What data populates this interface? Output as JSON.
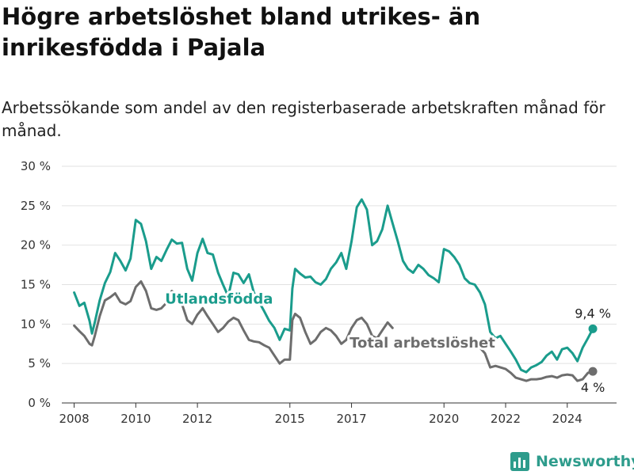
{
  "header": {
    "title": "Högre arbetslöshet bland utrikes- än inrikesfödda i Pajala",
    "subtitle": "Arbetssökande som andel av den registerbaserade arbetskraften månad för månad."
  },
  "brand": {
    "name": "Newsworthy"
  },
  "chart_data": {
    "type": "line",
    "title": "Högre arbetslöshet bland utrikes- än inrikesfödda i Pajala",
    "subtitle": "Arbetssökande som andel av den registerbaserade arbetskraften månad för månad.",
    "xlabel": "",
    "ylabel": "",
    "xlim": [
      2008.0,
      2025.0
    ],
    "ylim": [
      0,
      30
    ],
    "y_ticks": [
      0,
      5,
      10,
      15,
      20,
      25,
      30
    ],
    "y_tick_labels": [
      "0 %",
      "5 %",
      "10 %",
      "15 %",
      "20 %",
      "25 %",
      "30 %"
    ],
    "x_ticks": [
      2008,
      2010,
      2012,
      2015,
      2017,
      2020,
      2022,
      2024
    ],
    "x_tick_labels": [
      "2008",
      "2010",
      "2012",
      "2015",
      "2017",
      "2020",
      "2022",
      "2024"
    ],
    "grid": "horizontal",
    "legend": "direct-labels",
    "series": [
      {
        "name": "Utlandsfödda",
        "color": "#1a9c8c",
        "end_label": "9,4 %",
        "points": [
          [
            2008.0,
            14.0
          ],
          [
            2008.17,
            12.3
          ],
          [
            2008.33,
            12.7
          ],
          [
            2008.5,
            10.4
          ],
          [
            2008.58,
            8.8
          ],
          [
            2008.67,
            10.2
          ],
          [
            2008.83,
            13.0
          ],
          [
            2009.0,
            15.2
          ],
          [
            2009.17,
            16.6
          ],
          [
            2009.33,
            19.0
          ],
          [
            2009.5,
            18.0
          ],
          [
            2009.67,
            16.8
          ],
          [
            2009.83,
            18.3
          ],
          [
            2010.0,
            23.2
          ],
          [
            2010.17,
            22.7
          ],
          [
            2010.33,
            20.5
          ],
          [
            2010.5,
            17.0
          ],
          [
            2010.67,
            18.5
          ],
          [
            2010.83,
            18.0
          ],
          [
            2011.0,
            19.4
          ],
          [
            2011.17,
            20.7
          ],
          [
            2011.33,
            20.2
          ],
          [
            2011.5,
            20.3
          ],
          [
            2011.67,
            17.0
          ],
          [
            2011.83,
            15.5
          ],
          [
            2012.0,
            19.0
          ],
          [
            2012.17,
            20.8
          ],
          [
            2012.33,
            19.0
          ],
          [
            2012.5,
            18.8
          ],
          [
            2012.67,
            16.5
          ],
          [
            2012.83,
            15.0
          ],
          [
            2013.0,
            13.5
          ],
          [
            2013.17,
            16.5
          ],
          [
            2013.33,
            16.3
          ],
          [
            2013.5,
            15.2
          ],
          [
            2013.67,
            16.3
          ],
          [
            2013.83,
            14.0
          ],
          [
            2014.0,
            12.8
          ],
          [
            2014.17,
            11.6
          ],
          [
            2014.33,
            10.4
          ],
          [
            2014.5,
            9.5
          ],
          [
            2014.67,
            8.0
          ],
          [
            2014.83,
            9.4
          ],
          [
            2015.0,
            9.2
          ],
          [
            2015.08,
            14.5
          ],
          [
            2015.17,
            17.0
          ],
          [
            2015.33,
            16.4
          ],
          [
            2015.5,
            15.9
          ],
          [
            2015.67,
            16.0
          ],
          [
            2015.83,
            15.3
          ],
          [
            2016.0,
            15.0
          ],
          [
            2016.17,
            15.7
          ],
          [
            2016.33,
            17.0
          ],
          [
            2016.5,
            17.8
          ],
          [
            2016.67,
            19.0
          ],
          [
            2016.83,
            17.0
          ],
          [
            2017.0,
            20.5
          ],
          [
            2017.17,
            24.8
          ],
          [
            2017.33,
            25.8
          ],
          [
            2017.5,
            24.5
          ],
          [
            2017.67,
            20.0
          ],
          [
            2017.83,
            20.5
          ],
          [
            2018.0,
            22.0
          ],
          [
            2018.17,
            25.0
          ],
          [
            2018.33,
            22.8
          ],
          [
            2018.5,
            20.5
          ],
          [
            2018.67,
            18.0
          ],
          [
            2018.83,
            17.0
          ],
          [
            2019.0,
            16.5
          ],
          [
            2019.17,
            17.5
          ],
          [
            2019.33,
            17.0
          ],
          [
            2019.5,
            16.2
          ],
          [
            2019.67,
            15.8
          ],
          [
            2019.83,
            15.3
          ],
          [
            2020.0,
            19.5
          ],
          [
            2020.17,
            19.2
          ],
          [
            2020.33,
            18.5
          ],
          [
            2020.5,
            17.5
          ],
          [
            2020.67,
            15.8
          ],
          [
            2020.83,
            15.2
          ],
          [
            2021.0,
            15.0
          ],
          [
            2021.17,
            14.0
          ],
          [
            2021.33,
            12.5
          ],
          [
            2021.5,
            9.0
          ],
          [
            2021.67,
            8.2
          ],
          [
            2021.83,
            8.5
          ],
          [
            2022.0,
            7.5
          ],
          [
            2022.17,
            6.5
          ],
          [
            2022.33,
            5.5
          ],
          [
            2022.5,
            4.2
          ],
          [
            2022.67,
            3.9
          ],
          [
            2022.83,
            4.5
          ],
          [
            2023.0,
            4.8
          ],
          [
            2023.17,
            5.2
          ],
          [
            2023.33,
            6.0
          ],
          [
            2023.5,
            6.5
          ],
          [
            2023.67,
            5.5
          ],
          [
            2023.83,
            6.8
          ],
          [
            2024.0,
            7.0
          ],
          [
            2024.17,
            6.3
          ],
          [
            2024.33,
            5.3
          ],
          [
            2024.5,
            7.0
          ],
          [
            2024.67,
            8.2
          ],
          [
            2024.83,
            9.4
          ]
        ]
      },
      {
        "name": "Total arbetslöshet",
        "color": "#6d6d6d",
        "end_label": "4 %",
        "points": [
          [
            2008.0,
            9.8
          ],
          [
            2008.17,
            9.1
          ],
          [
            2008.33,
            8.5
          ],
          [
            2008.5,
            7.5
          ],
          [
            2008.58,
            7.3
          ],
          [
            2008.67,
            8.5
          ],
          [
            2008.83,
            11.0
          ],
          [
            2009.0,
            13.0
          ],
          [
            2009.17,
            13.4
          ],
          [
            2009.33,
            13.9
          ],
          [
            2009.5,
            12.8
          ],
          [
            2009.67,
            12.5
          ],
          [
            2009.83,
            12.9
          ],
          [
            2010.0,
            14.7
          ],
          [
            2010.17,
            15.4
          ],
          [
            2010.33,
            14.2
          ],
          [
            2010.5,
            12.0
          ],
          [
            2010.67,
            11.8
          ],
          [
            2010.83,
            12.0
          ],
          [
            2011.0,
            12.7
          ],
          [
            2011.17,
            14.2
          ],
          [
            2011.33,
            13.7
          ],
          [
            2011.5,
            12.5
          ],
          [
            2011.67,
            10.5
          ],
          [
            2011.83,
            10.0
          ],
          [
            2012.0,
            11.2
          ],
          [
            2012.17,
            12.0
          ],
          [
            2012.33,
            11.0
          ],
          [
            2012.5,
            10.0
          ],
          [
            2012.67,
            9.0
          ],
          [
            2012.83,
            9.5
          ],
          [
            2013.0,
            10.3
          ],
          [
            2013.17,
            10.8
          ],
          [
            2013.33,
            10.5
          ],
          [
            2013.5,
            9.2
          ],
          [
            2013.67,
            8.0
          ],
          [
            2013.83,
            7.8
          ],
          [
            2014.0,
            7.7
          ],
          [
            2014.17,
            7.3
          ],
          [
            2014.33,
            7.0
          ],
          [
            2014.5,
            6.0
          ],
          [
            2014.67,
            5.0
          ],
          [
            2014.83,
            5.5
          ],
          [
            2015.0,
            5.5
          ],
          [
            2015.08,
            10.5
          ],
          [
            2015.17,
            11.3
          ],
          [
            2015.33,
            10.8
          ],
          [
            2015.5,
            9.0
          ],
          [
            2015.67,
            7.5
          ],
          [
            2015.83,
            8.0
          ],
          [
            2016.0,
            9.0
          ],
          [
            2016.17,
            9.5
          ],
          [
            2016.33,
            9.2
          ],
          [
            2016.5,
            8.5
          ],
          [
            2016.67,
            7.5
          ],
          [
            2016.83,
            8.0
          ],
          [
            2017.0,
            9.5
          ],
          [
            2017.17,
            10.5
          ],
          [
            2017.33,
            10.8
          ],
          [
            2017.5,
            10.0
          ],
          [
            2017.67,
            8.5
          ],
          [
            2017.83,
            8.2
          ],
          [
            2018.0,
            9.2
          ],
          [
            2018.17,
            10.2
          ],
          [
            2018.33,
            9.5
          ]
        ]
      },
      {
        "name": "",
        "color": "#6d6d6d",
        "points": [
          [
            2021.0,
            7.5
          ],
          [
            2021.17,
            7.0
          ],
          [
            2021.33,
            6.3
          ],
          [
            2021.5,
            4.5
          ],
          [
            2021.67,
            4.7
          ],
          [
            2021.83,
            4.5
          ],
          [
            2022.0,
            4.3
          ],
          [
            2022.17,
            3.8
          ],
          [
            2022.33,
            3.2
          ],
          [
            2022.5,
            3.0
          ],
          [
            2022.67,
            2.8
          ],
          [
            2022.83,
            3.0
          ],
          [
            2023.0,
            3.0
          ],
          [
            2023.17,
            3.1
          ],
          [
            2023.33,
            3.3
          ],
          [
            2023.5,
            3.4
          ],
          [
            2023.67,
            3.2
          ],
          [
            2023.83,
            3.5
          ],
          [
            2024.0,
            3.6
          ],
          [
            2024.17,
            3.5
          ],
          [
            2024.33,
            2.8
          ],
          [
            2024.5,
            3.0
          ],
          [
            2024.67,
            3.8
          ],
          [
            2024.83,
            4.0
          ]
        ]
      }
    ],
    "annotations": [
      {
        "text": "Utlandsfödda",
        "x": 2012.7,
        "y": 12.6,
        "series": 0
      },
      {
        "text": "Total arbetslöshet",
        "x": 2019.3,
        "y": 7.0,
        "series": 1
      }
    ]
  }
}
